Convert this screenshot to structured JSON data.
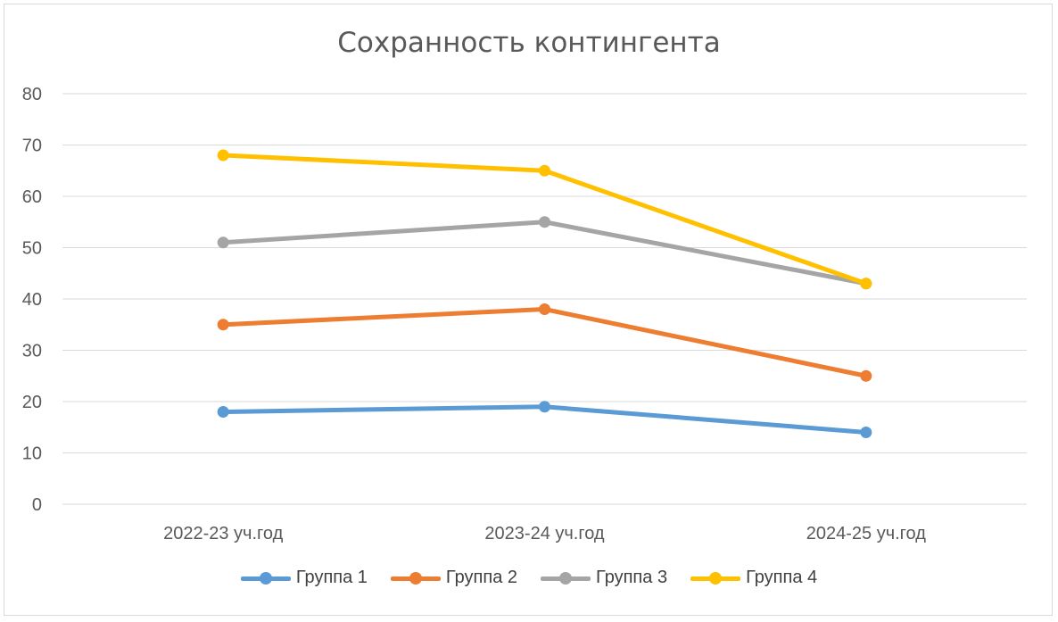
{
  "chart_data": {
    "type": "line",
    "title": "Сохранность контингента",
    "categories": [
      "2022-23 уч.год",
      "2023-24 уч.год",
      "2024-25 уч.год"
    ],
    "ylim": [
      0,
      80
    ],
    "yticks": [
      0,
      10,
      20,
      30,
      40,
      50,
      60,
      70,
      80
    ],
    "grid": true,
    "legend_position": "bottom",
    "series": [
      {
        "name": "Группа 1",
        "color": "#5b9bd5",
        "values": [
          18,
          19,
          14
        ]
      },
      {
        "name": "Группа 2",
        "color": "#ed7d31",
        "values": [
          35,
          38,
          25
        ]
      },
      {
        "name": "Группа 3",
        "color": "#a5a5a5",
        "values": [
          51,
          55,
          43
        ]
      },
      {
        "name": "Группа 4",
        "color": "#ffc000",
        "values": [
          68,
          65,
          43
        ]
      }
    ]
  }
}
